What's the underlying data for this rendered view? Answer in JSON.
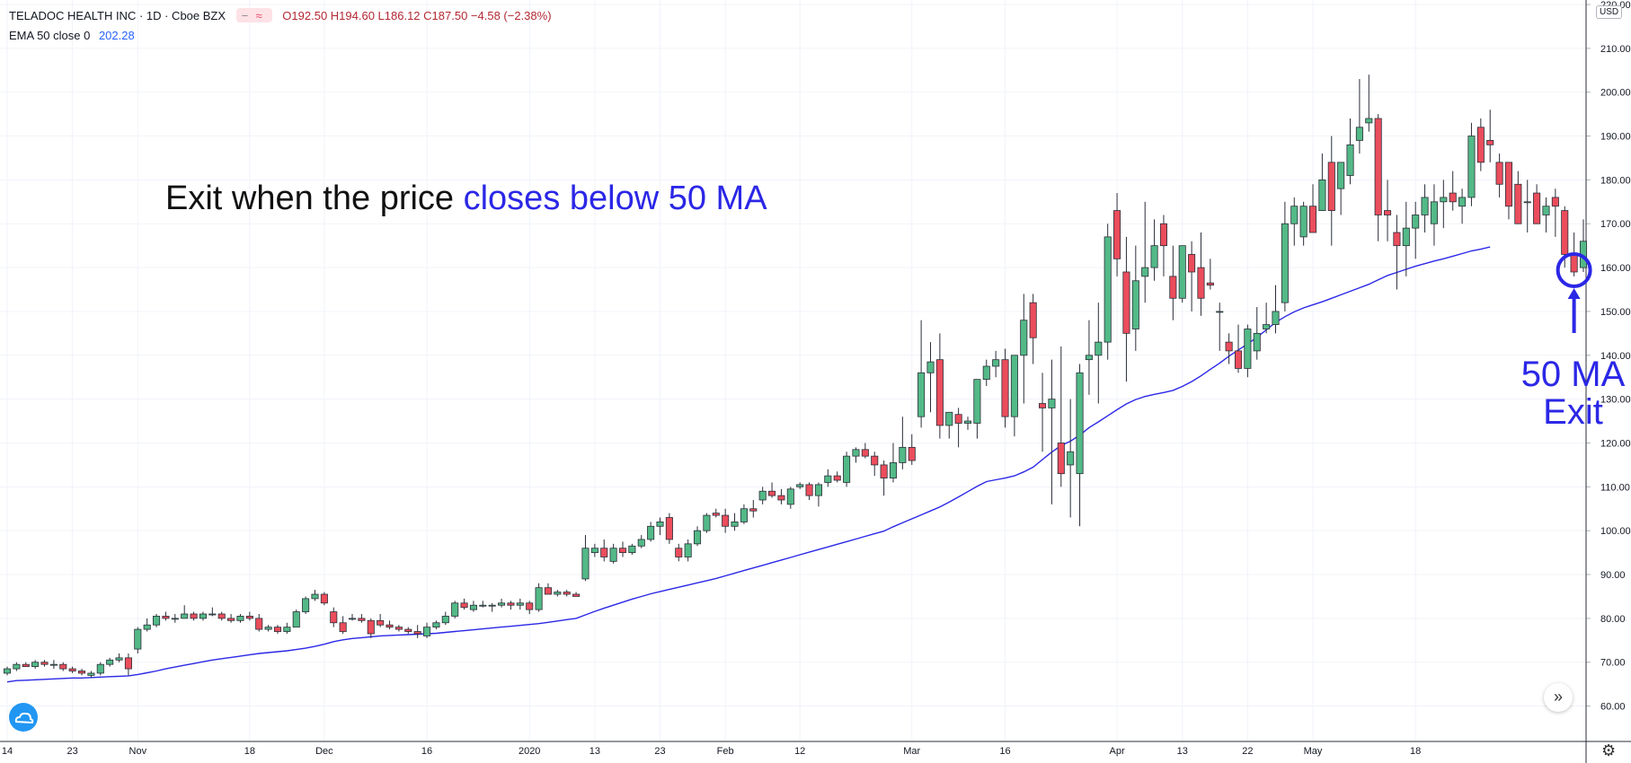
{
  "legend": {
    "symbol": "TELADOC HEALTH INC · 1D · Cboe BZX",
    "compare_icon_dash": "−",
    "compare_icon_wave": "≈",
    "ohlc": "O192.50  H194.60  L186.12  C187.50  −4.58 (−2.38%)",
    "indicator_label": "EMA 50 close 0",
    "indicator_value": "202.28"
  },
  "annotations": {
    "main_prefix": "Exit when the price ",
    "main_highlight": "closes below 50 MA",
    "side_line1": "50 MA",
    "side_line2": "Exit"
  },
  "currency": "USD",
  "colors": {
    "up": "#53b987",
    "down": "#eb4d5c",
    "ma": "#2b27e6",
    "annotation": "#2b27e6"
  },
  "icons": {
    "forward": "double-chevron-right-icon",
    "settings": "gear-icon",
    "logo": "tradingview-cloud-icon"
  },
  "chart_data": {
    "type": "candlestick",
    "y_axis": {
      "min": 55,
      "max": 220,
      "ticks": [
        60,
        70,
        80,
        90,
        100,
        110,
        120,
        130,
        140,
        150,
        160,
        170,
        180,
        190,
        200,
        210,
        220
      ],
      "tick_labels": [
        "60.00",
        "70.00",
        "80.00",
        "90.00",
        "100.00",
        "110.00",
        "120.00",
        "130.00",
        "140.00",
        "150.00",
        "160.00",
        "170.00",
        "180.00",
        "190.00",
        "200.00",
        "210.00",
        "220.00"
      ],
      "position": "right"
    },
    "x_labels": [
      {
        "label": "14",
        "index": 0
      },
      {
        "label": "23",
        "index": 7
      },
      {
        "label": "Nov",
        "index": 14
      },
      {
        "label": "18",
        "index": 26
      },
      {
        "label": "Dec",
        "index": 34
      },
      {
        "label": "16",
        "index": 45
      },
      {
        "label": "2020",
        "index": 56
      },
      {
        "label": "13",
        "index": 63
      },
      {
        "label": "23",
        "index": 70
      },
      {
        "label": "Feb",
        "index": 77
      },
      {
        "label": "12",
        "index": 85
      },
      {
        "label": "Mar",
        "index": 97
      },
      {
        "label": "16",
        "index": 107
      },
      {
        "label": "Apr",
        "index": 119
      },
      {
        "label": "13",
        "index": 126
      },
      {
        "label": "22",
        "index": 133
      },
      {
        "label": "May",
        "index": 140
      },
      {
        "label": "18",
        "index": 151
      }
    ],
    "grid": true,
    "series_ohlc": [
      [
        67.5,
        69,
        67,
        68.5
      ],
      [
        68.5,
        70,
        68,
        69.5
      ],
      [
        69.5,
        70,
        69,
        69
      ],
      [
        69,
        70.5,
        68.5,
        70
      ],
      [
        70,
        70.5,
        69,
        69.5
      ],
      [
        69.5,
        70.5,
        68.5,
        69.5
      ],
      [
        69.5,
        70,
        68,
        68.5
      ],
      [
        68.5,
        69,
        67.5,
        68
      ],
      [
        68,
        68.5,
        67,
        67.5
      ],
      [
        67,
        68,
        66.5,
        67.5
      ],
      [
        67.5,
        70,
        67,
        69.5
      ],
      [
        69.5,
        71,
        69,
        70.5
      ],
      [
        70.5,
        72,
        70,
        71
      ],
      [
        71,
        72,
        67,
        68.5
      ],
      [
        73,
        78,
        72,
        77.5
      ],
      [
        77.5,
        80,
        77,
        78.5
      ],
      [
        78.5,
        81,
        78,
        80.5
      ],
      [
        80.5,
        81.5,
        79.5,
        80
      ],
      [
        80,
        81,
        79,
        80
      ],
      [
        80,
        83,
        80,
        81
      ],
      [
        81,
        81.5,
        79.5,
        80
      ],
      [
        80,
        81.5,
        79.5,
        81
      ],
      [
        81,
        82.5,
        80.5,
        81
      ],
      [
        81,
        81.5,
        79.5,
        80
      ],
      [
        80,
        81,
        79,
        79.5
      ],
      [
        79.5,
        81,
        79,
        80.5
      ],
      [
        80.5,
        81.5,
        79.5,
        80
      ],
      [
        80,
        81,
        77,
        77.5
      ],
      [
        77.5,
        78.5,
        77,
        78
      ],
      [
        78,
        78.5,
        76.5,
        77
      ],
      [
        77,
        79,
        76.5,
        78
      ],
      [
        78,
        82,
        78,
        81.5
      ],
      [
        81.5,
        85,
        81,
        84.5
      ],
      [
        84.5,
        86.5,
        84,
        85.5
      ],
      [
        85.5,
        86,
        83,
        83.5
      ],
      [
        81.5,
        82.5,
        78,
        79
      ],
      [
        79,
        80.5,
        76.5,
        77
      ],
      [
        80,
        81,
        79.5,
        80
      ],
      [
        80,
        81,
        79,
        79.5
      ],
      [
        79.5,
        80,
        75.5,
        76.5
      ],
      [
        79.5,
        81,
        78,
        78.5
      ],
      [
        78.5,
        79.5,
        77.5,
        78
      ],
      [
        78,
        78.5,
        77,
        77.5
      ],
      [
        77.5,
        78,
        76.5,
        77
      ],
      [
        77,
        78.5,
        75.5,
        76.5
      ],
      [
        76,
        79,
        75.5,
        78
      ],
      [
        78,
        79.5,
        77.5,
        79
      ],
      [
        79,
        81.5,
        78.5,
        80.5
      ],
      [
        80.5,
        84,
        80,
        83.5
      ],
      [
        83.5,
        84.5,
        82,
        82.5
      ],
      [
        82,
        84,
        81.5,
        83
      ],
      [
        83,
        84,
        82.5,
        83
      ],
      [
        83,
        83.5,
        81.5,
        83
      ],
      [
        83,
        84.5,
        82.5,
        83.5
      ],
      [
        83.5,
        84,
        82,
        83
      ],
      [
        83,
        84.5,
        82,
        83.5
      ],
      [
        83.5,
        84,
        81,
        82
      ],
      [
        82,
        88,
        81.5,
        87
      ],
      [
        87,
        88,
        85.5,
        85.5
      ],
      [
        85.5,
        86.5,
        85,
        86
      ],
      [
        86,
        86.5,
        85,
        85.5
      ],
      [
        85.5,
        86,
        85,
        85
      ],
      [
        89,
        99,
        88.5,
        96
      ],
      [
        95,
        97,
        94,
        96
      ],
      [
        96,
        98,
        93,
        94
      ],
      [
        93,
        97,
        92.5,
        96
      ],
      [
        96,
        97.5,
        94,
        95
      ],
      [
        95,
        97,
        94.5,
        96.5
      ],
      [
        96.5,
        99,
        96,
        98
      ],
      [
        98,
        102,
        97.5,
        101
      ],
      [
        101,
        103,
        99,
        102
      ],
      [
        103,
        104,
        97,
        98
      ],
      [
        96,
        97,
        93,
        94
      ],
      [
        94,
        98,
        93,
        97
      ],
      [
        97,
        101,
        96.5,
        100
      ],
      [
        100,
        104,
        99.5,
        103.5
      ],
      [
        104,
        105,
        103,
        103.5
      ],
      [
        103.5,
        105,
        99.5,
        101
      ],
      [
        101,
        104,
        100,
        102
      ],
      [
        102,
        106,
        101.5,
        105
      ],
      [
        105,
        107,
        103,
        104.5
      ],
      [
        107,
        110,
        106,
        109
      ],
      [
        109,
        111,
        107.5,
        108
      ],
      [
        108,
        109.5,
        106,
        107
      ],
      [
        106,
        110,
        105,
        109.5
      ],
      [
        110,
        111,
        109.5,
        110.5
      ],
      [
        110.5,
        111,
        107,
        108
      ],
      [
        108,
        111,
        105.5,
        110.5
      ],
      [
        111,
        114,
        110,
        112.5
      ],
      [
        112.5,
        113.5,
        111,
        111.5
      ],
      [
        111,
        118,
        110,
        117
      ],
      [
        117,
        119,
        115.5,
        118.5
      ],
      [
        118.5,
        120,
        116.5,
        117
      ],
      [
        117,
        118,
        112.5,
        115
      ],
      [
        115,
        116,
        108,
        112
      ],
      [
        112,
        120,
        111,
        115.5
      ],
      [
        115.5,
        126,
        114,
        119
      ],
      [
        119,
        122,
        115,
        116
      ],
      [
        126,
        148,
        123.5,
        136
      ],
      [
        136,
        143,
        127,
        138.5
      ],
      [
        139,
        145,
        121,
        124
      ],
      [
        124,
        127,
        121,
        127
      ],
      [
        126.5,
        128,
        119,
        124.5
      ],
      [
        124.5,
        126,
        123,
        125
      ],
      [
        124.5,
        134,
        121,
        134.5
      ],
      [
        134.5,
        139,
        133,
        137.5
      ],
      [
        137.5,
        141,
        135,
        139
      ],
      [
        139,
        141.5,
        123.5,
        126
      ],
      [
        126,
        140,
        121.5,
        140
      ],
      [
        140,
        154,
        129,
        148
      ],
      [
        152,
        154,
        138,
        144
      ],
      [
        129,
        136,
        118,
        128
      ],
      [
        128,
        139,
        106,
        130
      ],
      [
        120,
        142,
        110,
        113
      ],
      [
        115,
        130,
        103,
        118
      ],
      [
        113,
        138,
        101,
        136
      ],
      [
        139,
        148,
        131,
        140
      ],
      [
        140,
        152,
        129,
        143
      ],
      [
        143,
        170,
        139,
        167
      ],
      [
        173,
        177,
        158,
        162
      ],
      [
        159,
        167,
        134,
        145
      ],
      [
        146,
        165,
        141,
        157
      ],
      [
        158,
        175,
        152,
        160
      ],
      [
        160,
        171,
        157,
        165
      ],
      [
        170,
        172,
        158,
        165
      ],
      [
        158,
        165,
        148,
        153
      ],
      [
        153,
        162,
        152,
        165
      ],
      [
        163,
        166,
        150,
        159
      ],
      [
        160,
        168,
        149,
        153
      ],
      [
        156.5,
        162,
        155,
        156
      ],
      [
        150,
        152,
        141,
        150
      ],
      [
        143,
        145,
        138,
        141
      ],
      [
        141,
        147,
        136,
        137
      ],
      [
        137,
        147,
        135,
        146
      ],
      [
        141,
        151,
        139,
        145
      ],
      [
        146,
        152,
        145,
        147
      ],
      [
        147,
        156,
        145,
        150
      ],
      [
        152,
        175,
        150,
        170
      ],
      [
        170,
        176,
        165,
        174
      ],
      [
        167,
        175,
        165,
        174
      ],
      [
        174,
        179,
        168,
        168
      ],
      [
        173,
        186,
        173,
        180
      ],
      [
        184,
        190,
        165,
        173
      ],
      [
        178,
        184,
        172,
        184
      ],
      [
        181,
        194,
        179,
        188
      ],
      [
        189,
        203,
        186,
        192
      ],
      [
        193,
        204,
        191,
        194
      ],
      [
        194,
        195,
        166,
        172
      ],
      [
        173,
        180,
        166,
        172
      ],
      [
        168,
        172,
        155,
        165
      ],
      [
        165,
        175,
        158,
        169
      ],
      [
        169,
        175,
        162,
        172
      ],
      [
        172,
        179,
        168,
        176
      ],
      [
        170,
        179,
        165,
        175
      ],
      [
        175,
        180,
        169,
        176
      ],
      [
        177,
        182,
        173,
        175
      ],
      [
        174,
        178,
        170,
        176
      ],
      [
        176,
        193,
        174,
        190
      ],
      [
        192,
        194,
        182,
        184
      ],
      [
        189,
        196,
        184,
        188
      ],
      [
        184,
        186,
        176,
        179
      ],
      [
        184,
        184,
        171,
        174
      ],
      [
        179,
        182,
        170,
        170
      ],
      [
        175,
        180,
        168,
        175
      ],
      [
        177,
        179,
        170,
        170
      ],
      [
        172,
        176,
        168,
        174
      ],
      [
        176,
        178,
        167,
        174
      ],
      [
        173,
        174,
        160,
        163
      ],
      [
        163,
        168,
        158,
        159
      ],
      [
        160,
        171,
        159,
        166
      ]
    ],
    "ma_series": {
      "name": "EMA 50 close 0",
      "values": [
        65.5,
        65.8,
        65.9,
        66.0,
        66.1,
        66.2,
        66.3,
        66.4,
        66.4,
        66.5,
        66.6,
        66.7,
        66.8,
        66.9,
        67.2,
        67.6,
        68.0,
        68.5,
        68.9,
        69.3,
        69.7,
        70.1,
        70.5,
        70.8,
        71.1,
        71.4,
        71.7,
        72.0,
        72.2,
        72.4,
        72.6,
        72.9,
        73.2,
        73.6,
        74.1,
        74.7,
        75.1,
        75.4,
        75.6,
        75.8,
        76.0,
        76.1,
        76.2,
        76.3,
        76.4,
        76.5,
        76.6,
        76.8,
        77.0,
        77.2,
        77.4,
        77.6,
        77.8,
        78.0,
        78.2,
        78.4,
        78.6,
        78.8,
        79.1,
        79.4,
        79.7,
        80.0,
        80.8,
        81.6,
        82.3,
        83.0,
        83.7,
        84.4,
        85.0,
        85.6,
        86.1,
        86.6,
        87.1,
        87.6,
        88.1,
        88.6,
        89.1,
        89.7,
        90.3,
        90.9,
        91.5,
        92.1,
        92.7,
        93.3,
        93.9,
        94.5,
        95.1,
        95.7,
        96.3,
        96.9,
        97.5,
        98.1,
        98.7,
        99.3,
        99.9,
        100.9,
        101.8,
        102.7,
        103.6,
        104.5,
        105.4,
        106.5,
        107.7,
        108.9,
        110.1,
        111.2,
        111.6,
        112.0,
        112.5,
        113.4,
        114.5,
        116.2,
        117.9,
        119.4,
        120.4,
        121.8,
        123.5,
        124.8,
        126.2,
        127.6,
        128.9,
        129.9,
        130.6,
        131.1,
        131.5,
        132.0,
        132.9,
        134.0,
        135.3,
        136.8,
        138.2,
        139.8,
        141.2,
        142.6,
        144.1,
        145.8,
        147.5,
        148.8,
        149.9,
        150.8,
        151.5,
        152.2,
        153.0,
        153.8,
        154.6,
        155.4,
        156.2,
        157.2,
        158.2,
        158.9,
        159.6,
        160.3,
        160.9,
        161.5,
        162.0,
        162.6,
        163.2,
        163.8,
        164.2,
        164.7
      ]
    }
  }
}
